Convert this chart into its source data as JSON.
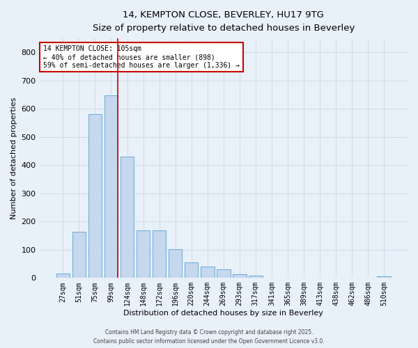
{
  "title1": "14, KEMPTON CLOSE, BEVERLEY, HU17 9TG",
  "title2": "Size of property relative to detached houses in Beverley",
  "xlabel": "Distribution of detached houses by size in Beverley",
  "ylabel": "Number of detached properties",
  "bar_labels": [
    "27sqm",
    "51sqm",
    "75sqm",
    "99sqm",
    "124sqm",
    "148sqm",
    "172sqm",
    "196sqm",
    "220sqm",
    "244sqm",
    "269sqm",
    "293sqm",
    "317sqm",
    "341sqm",
    "365sqm",
    "389sqm",
    "413sqm",
    "438sqm",
    "462sqm",
    "486sqm",
    "510sqm"
  ],
  "bar_values": [
    15,
    165,
    580,
    648,
    430,
    168,
    168,
    103,
    55,
    40,
    30,
    13,
    8,
    2,
    2,
    1,
    1,
    1,
    1,
    1,
    6
  ],
  "bar_color": "#c5d8ee",
  "bar_edgecolor": "#6aabda",
  "grid_color": "#cddcec",
  "bg_color": "#e8f0f8",
  "vline_color": "#cc0000",
  "annotation_text": "14 KEMPTON CLOSE: 105sqm\n← 40% of detached houses are smaller (898)\n59% of semi-detached houses are larger (1,336) →",
  "annotation_box_color": "#ffffff",
  "annotation_box_edgecolor": "#cc0000",
  "footer1": "Contains HM Land Registry data © Crown copyright and database right 2025.",
  "footer2": "Contains public sector information licensed under the Open Government Licence v3.0.",
  "ylim": [
    0,
    850
  ],
  "yticks": [
    0,
    100,
    200,
    300,
    400,
    500,
    600,
    700,
    800
  ]
}
